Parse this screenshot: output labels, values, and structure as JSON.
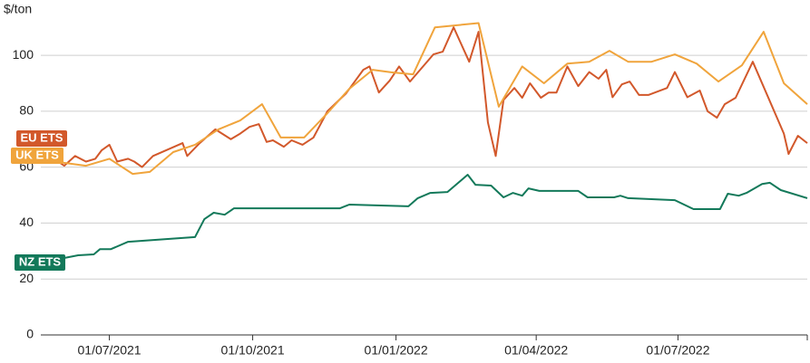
{
  "chart_data": {
    "type": "line",
    "y_label": "$/ton",
    "xlim": [
      "2021-05-18",
      "2022-09-22"
    ],
    "xticks": [
      {
        "value": "2021-07-01",
        "label": "01/07/2021"
      },
      {
        "value": "2021-10-01",
        "label": "01/10/2021"
      },
      {
        "value": "2022-01-01",
        "label": "01/01/2022"
      },
      {
        "value": "2022-04-01",
        "label": "01/04/2022"
      },
      {
        "value": "2022-07-01",
        "label": "01/07/2022"
      }
    ],
    "ylim": [
      0,
      112
    ],
    "yticks": [
      0,
      20,
      40,
      60,
      80,
      100
    ],
    "grid": true,
    "series": [
      {
        "name": "EU ETS",
        "color": "#d2582b",
        "x": [
          "2021-05-24",
          "2021-06-02",
          "2021-06-09",
          "2021-06-16",
          "2021-06-22",
          "2021-06-26",
          "2021-07-01",
          "2021-07-06",
          "2021-07-13",
          "2021-07-17",
          "2021-07-22",
          "2021-07-29",
          "2021-08-17",
          "2021-08-20",
          "2021-08-28",
          "2021-09-07",
          "2021-09-17",
          "2021-09-23",
          "2021-09-29",
          "2021-10-05",
          "2021-10-10",
          "2021-10-14",
          "2021-10-21",
          "2021-10-26",
          "2021-11-02",
          "2021-11-09",
          "2021-11-18",
          "2021-11-30",
          "2021-12-06",
          "2021-12-11",
          "2021-12-15",
          "2021-12-21",
          "2021-12-28",
          "2022-01-03",
          "2022-01-10",
          "2022-01-25",
          "2022-01-31",
          "2022-02-07",
          "2022-02-17",
          "2022-02-23",
          "2022-03-01",
          "2022-03-06",
          "2022-03-11",
          "2022-03-18",
          "2022-03-23",
          "2022-03-28",
          "2022-04-04",
          "2022-04-09",
          "2022-04-14",
          "2022-04-21",
          "2022-04-28",
          "2022-05-05",
          "2022-05-11",
          "2022-05-16",
          "2022-05-20",
          "2022-05-26",
          "2022-05-31",
          "2022-06-06",
          "2022-06-12",
          "2022-06-24",
          "2022-06-29",
          "2022-07-07",
          "2022-07-15",
          "2022-07-20",
          "2022-07-26",
          "2022-07-31",
          "2022-08-07",
          "2022-08-18",
          "2022-09-07",
          "2022-09-10",
          "2022-09-16",
          "2022-09-22"
        ],
        "values": [
          64,
          60.5,
          64,
          62,
          63,
          66,
          68,
          62,
          63,
          62,
          60,
          64,
          68.6,
          64,
          68.6,
          73.5,
          70,
          72,
          74.4,
          75.4,
          69,
          69.6,
          67.3,
          69.6,
          68,
          70.6,
          80,
          86.4,
          91,
          94.8,
          96,
          86.7,
          91,
          96,
          90.6,
          100.3,
          101.3,
          110,
          97.7,
          108.4,
          76,
          64,
          84,
          88.3,
          84.8,
          90,
          84.8,
          86.7,
          86.7,
          96,
          89,
          94,
          91.6,
          94.8,
          85,
          89.6,
          90.6,
          85.8,
          85.8,
          88.3,
          94,
          85,
          87.4,
          80,
          77.7,
          82.5,
          84.8,
          97.7,
          72,
          64.7,
          71.2,
          68.6
        ]
      },
      {
        "name": "UK ETS",
        "color": "#f0a43c",
        "x": [
          "2021-05-18",
          "2021-05-27",
          "2021-06-16",
          "2021-07-01",
          "2021-07-16",
          "2021-07-27",
          "2021-08-11",
          "2021-08-25",
          "2021-09-09",
          "2021-09-23",
          "2021-10-07",
          "2021-10-19",
          "2021-11-03",
          "2021-11-18",
          "2021-12-02",
          "2021-12-17",
          "2021-12-29",
          "2022-01-12",
          "2022-01-26",
          "2022-02-23",
          "2022-03-08",
          "2022-03-23",
          "2022-04-06",
          "2022-04-21",
          "2022-05-05",
          "2022-05-18",
          "2022-05-30",
          "2022-06-14",
          "2022-06-29",
          "2022-07-13",
          "2022-07-27",
          "2022-08-11",
          "2022-08-25",
          "2022-09-07",
          "2022-09-22"
        ],
        "values": [
          64,
          62,
          60.5,
          63,
          57.6,
          58.3,
          65.4,
          68,
          73.5,
          76.7,
          82.5,
          70.6,
          70.6,
          79.3,
          88,
          94.8,
          93.9,
          93.2,
          110,
          111.5,
          81.6,
          96,
          90,
          97,
          97.7,
          101.6,
          97.7,
          97.7,
          100.3,
          97,
          90.6,
          96.4,
          108.4,
          90,
          82.5
        ]
      },
      {
        "name": "NZ ETS",
        "color": "#13795a",
        "x": [
          "2021-05-18",
          "2021-06-11",
          "2021-06-21",
          "2021-06-25",
          "2021-07-02",
          "2021-07-13",
          "2021-08-25",
          "2021-08-31",
          "2021-09-06",
          "2021-09-13",
          "2021-09-19",
          "2021-11-26",
          "2021-12-02",
          "2022-01-09",
          "2022-01-15",
          "2022-01-23",
          "2022-02-03",
          "2022-02-16",
          "2022-02-21",
          "2022-03-03",
          "2022-03-11",
          "2022-03-17",
          "2022-03-23",
          "2022-03-27",
          "2022-04-03",
          "2022-04-28",
          "2022-05-04",
          "2022-05-21",
          "2022-05-25",
          "2022-05-30",
          "2022-06-29",
          "2022-07-11",
          "2022-07-28",
          "2022-08-02",
          "2022-08-09",
          "2022-08-14",
          "2022-08-24",
          "2022-08-29",
          "2022-09-05",
          "2022-09-22"
        ],
        "values": [
          25.9,
          28.5,
          28.8,
          30.7,
          30.7,
          33.3,
          35,
          41.4,
          43.7,
          43,
          45.3,
          45.3,
          46.6,
          46,
          48.9,
          50.8,
          51.1,
          57.3,
          53.7,
          53.4,
          49.2,
          50.8,
          49.8,
          52.4,
          51.5,
          51.5,
          49.2,
          49.2,
          49.8,
          48.9,
          48.2,
          45,
          45,
          50.5,
          49.8,
          50.8,
          54,
          54.4,
          51.8,
          48.9
        ]
      }
    ]
  }
}
